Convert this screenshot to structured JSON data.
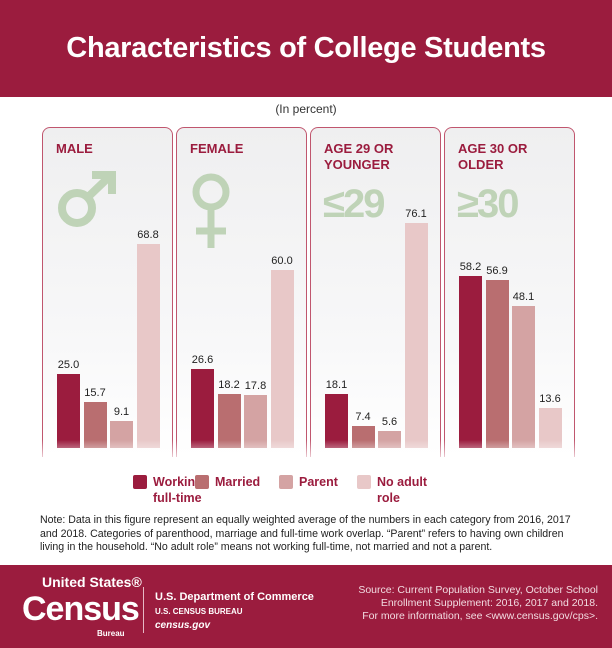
{
  "title": "Characteristics of College Students",
  "unit_note": "(In percent)",
  "colors": {
    "brand": "#9b1c3e",
    "working": "#9b1c3e",
    "married": "#b96e70",
    "parent": "#d4a3a3",
    "no_adult_role": "#e8c8c8",
    "symbol": "#bfd3b7"
  },
  "chart_data": {
    "type": "bar",
    "title": "Characteristics of College Students",
    "ylabel": "(In percent)",
    "groups": [
      {
        "label": "MALE",
        "symbol": "male-symbol",
        "values": [
          25.0,
          15.7,
          9.1,
          68.8
        ]
      },
      {
        "label": "FEMALE",
        "symbol": "female-symbol",
        "values": [
          26.6,
          18.2,
          17.8,
          60.0
        ]
      },
      {
        "label": "AGE 29 OR YOUNGER",
        "symbol_text": "≤29",
        "values": [
          18.1,
          7.4,
          5.6,
          76.1
        ]
      },
      {
        "label": "AGE 30 OR OLDER",
        "symbol_text": "≥30",
        "values": [
          58.2,
          56.9,
          48.1,
          13.6
        ]
      }
    ],
    "series": [
      {
        "name": "Working full-time"
      },
      {
        "name": "Married"
      },
      {
        "name": "Parent"
      },
      {
        "name": "No adult role"
      }
    ],
    "legend": "bottom",
    "ylim": [
      0,
      80
    ],
    "grid": false
  },
  "legend": [
    {
      "line1": "Working",
      "line2": "full-time"
    },
    {
      "line1": "Married",
      "line2": ""
    },
    {
      "line1": "Parent",
      "line2": ""
    },
    {
      "line1": "No adult",
      "line2": "role"
    }
  ],
  "note": "Note: Data in this figure represent an equally weighted average of the numbers in each category from 2016, 2017 and 2018. Categories of parenthood, marriage and full-time work overlap. “Parent” refers to having own children living in the household. “No adult role” means not working full-time, not married and not a parent.",
  "footer": {
    "logo_us": "United States®",
    "logo_census": "Census",
    "logo_bureau": "Bureau",
    "dept": "U.S. Department of Commerce",
    "bureau": "U.S. CENSUS BUREAU",
    "site": "census.gov",
    "source_lines": [
      "Source: Current Population Survey, October School",
      "Enrollment Supplement: 2016, 2017 and 2018.",
      "For more information, see <www.census.gov/cps>."
    ]
  }
}
